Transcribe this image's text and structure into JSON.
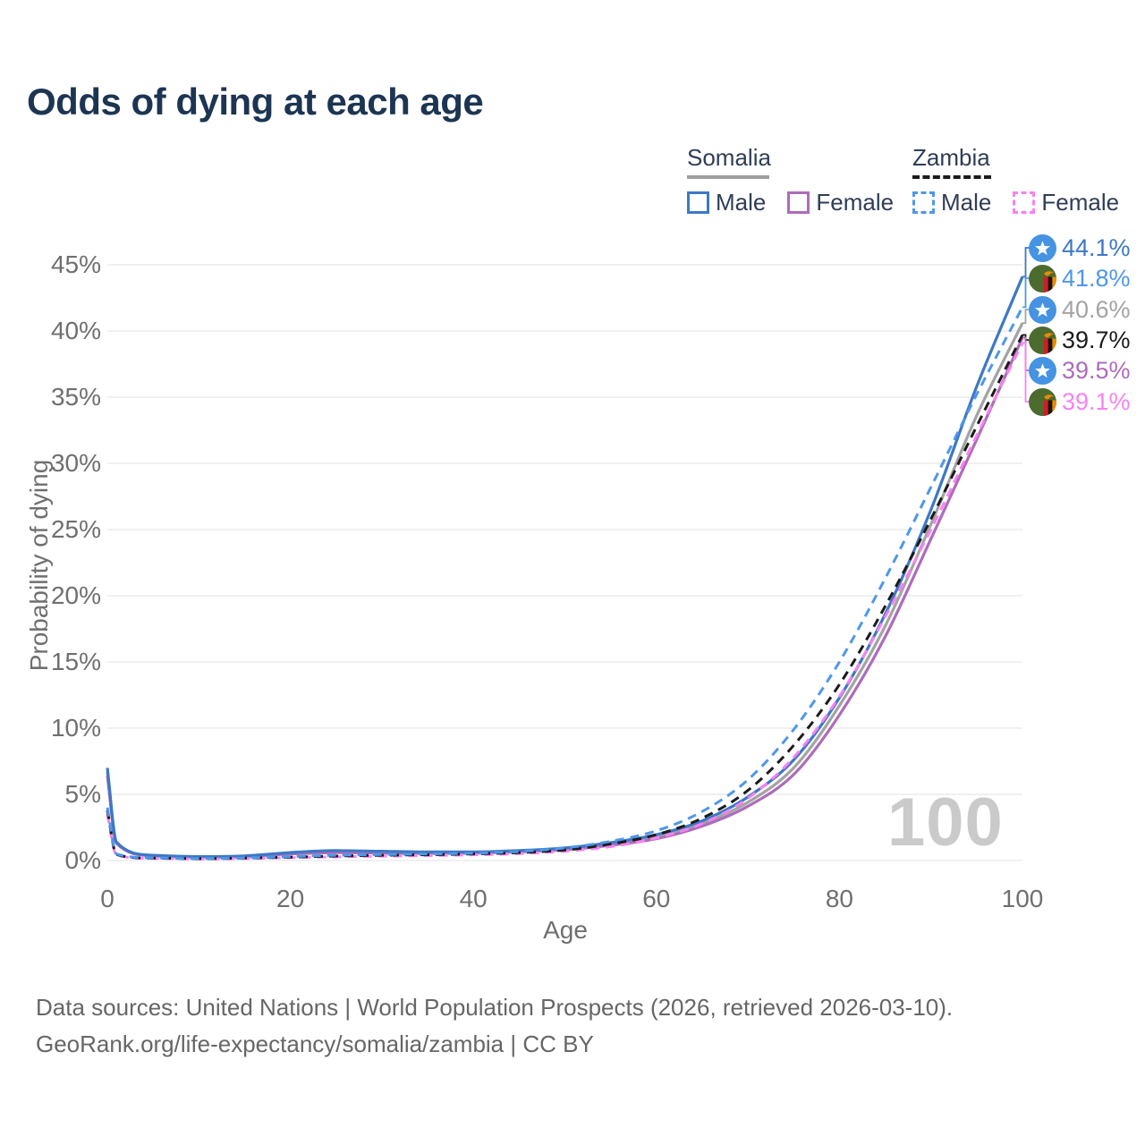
{
  "title": "Odds of dying at each age",
  "watermark": "100",
  "legend": {
    "groups": [
      {
        "country": "Somalia",
        "style": "solid",
        "underline_color": "#9e9e9e",
        "items": [
          {
            "label": "Male",
            "color": "#3d78c6"
          },
          {
            "label": "Female",
            "color": "#ad6cba"
          }
        ]
      },
      {
        "country": "Zambia",
        "style": "dashed",
        "underline_color": "#1a1a1a",
        "items": [
          {
            "label": "Male",
            "color": "#4f97ea"
          },
          {
            "label": "Female",
            "color": "#f981f2"
          }
        ]
      }
    ]
  },
  "footer": {
    "line1": "Data sources: United Nations | World Population Prospects (2026, retrieved 2026-03-10).",
    "line2": "GeoRank.org/life-expectancy/somalia/zambia | CC BY"
  },
  "chart_data": {
    "type": "line",
    "title": "Odds of dying at each age",
    "xlabel": "Age",
    "ylabel": "Probability of dying",
    "xlim": [
      0,
      100
    ],
    "ylim": [
      0,
      45
    ],
    "grid": "horizontal",
    "legend_position": "top-right",
    "x_ticks": [
      0,
      20,
      40,
      60,
      80,
      100
    ],
    "x_tick_labels": [
      "0",
      "20",
      "40",
      "60",
      "80",
      "100"
    ],
    "y_ticks": [
      0,
      5,
      10,
      15,
      20,
      25,
      30,
      35,
      40,
      45
    ],
    "y_tick_labels": [
      "0%",
      "5%",
      "10%",
      "15%",
      "20%",
      "25%",
      "30%",
      "35%",
      "40%",
      "45%"
    ],
    "x": [
      0,
      1,
      5,
      10,
      15,
      20,
      25,
      30,
      35,
      40,
      45,
      50,
      55,
      60,
      65,
      70,
      75,
      80,
      85,
      90,
      95,
      100
    ],
    "series": [
      {
        "name": "Somalia Male",
        "country": "Somalia",
        "sex": "Male",
        "style": "solid",
        "color": "#3d78c6",
        "flag": "somalia",
        "end_label": "44.1%",
        "values": [
          7.0,
          1.4,
          0.4,
          0.3,
          0.35,
          0.6,
          0.75,
          0.7,
          0.65,
          0.65,
          0.75,
          0.95,
          1.35,
          1.95,
          3.0,
          4.8,
          7.6,
          12.3,
          18.6,
          26.5,
          35.8,
          44.1
        ]
      },
      {
        "name": "Zambia Male",
        "country": "Zambia",
        "sex": "Male",
        "style": "dashed",
        "color": "#4f97ea",
        "flag": "zambia",
        "end_label": "41.8%",
        "values": [
          4.0,
          0.5,
          0.2,
          0.15,
          0.2,
          0.3,
          0.4,
          0.45,
          0.5,
          0.55,
          0.68,
          0.95,
          1.45,
          2.25,
          3.7,
          6.1,
          9.9,
          15.0,
          21.3,
          28.2,
          35.2,
          41.8
        ]
      },
      {
        "name": "Somalia",
        "country": "Somalia",
        "sex": "Both",
        "style": "solid",
        "color": "#a3a3a3",
        "flag": "somalia",
        "end_label": "40.6%",
        "values": [
          6.7,
          1.35,
          0.38,
          0.28,
          0.33,
          0.55,
          0.68,
          0.64,
          0.6,
          0.6,
          0.7,
          0.88,
          1.25,
          1.8,
          2.8,
          4.4,
          7.0,
          11.7,
          17.7,
          25.4,
          33.6,
          40.6
        ]
      },
      {
        "name": "Zambia",
        "country": "Zambia",
        "sex": "Both",
        "style": "dashed",
        "color": "#1b1b1b",
        "flag": "zambia",
        "end_label": "39.7%",
        "values": [
          3.8,
          0.45,
          0.18,
          0.14,
          0.18,
          0.26,
          0.34,
          0.4,
          0.44,
          0.5,
          0.6,
          0.8,
          1.25,
          1.95,
          3.2,
          5.3,
          8.7,
          13.3,
          19.2,
          25.8,
          32.8,
          39.7
        ]
      },
      {
        "name": "Somalia Female",
        "country": "Somalia",
        "sex": "Female",
        "style": "solid",
        "color": "#ad6cba",
        "flag": "somalia",
        "end_label": "39.5%",
        "values": [
          6.4,
          1.3,
          0.36,
          0.26,
          0.3,
          0.5,
          0.6,
          0.57,
          0.55,
          0.56,
          0.65,
          0.82,
          1.15,
          1.65,
          2.6,
          4.1,
          6.5,
          11.0,
          16.9,
          24.3,
          31.8,
          39.5
        ]
      },
      {
        "name": "Zambia Female",
        "country": "Zambia",
        "sex": "Female",
        "style": "dashed",
        "color": "#f981f2",
        "flag": "zambia",
        "end_label": "39.1%",
        "values": [
          3.5,
          0.4,
          0.16,
          0.12,
          0.15,
          0.22,
          0.28,
          0.33,
          0.37,
          0.43,
          0.52,
          0.7,
          1.05,
          1.7,
          2.8,
          4.7,
          7.8,
          12.4,
          18.4,
          25.0,
          32.1,
          39.1
        ]
      }
    ]
  }
}
